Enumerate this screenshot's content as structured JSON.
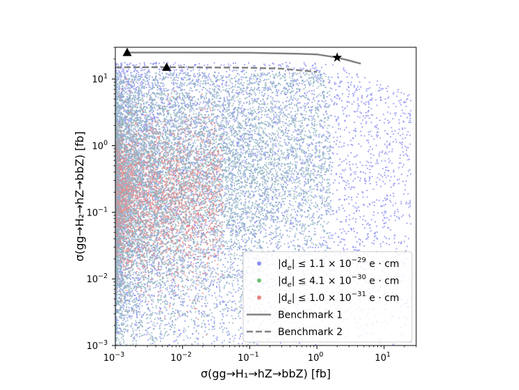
{
  "chart_data": {
    "type": "scatter",
    "title": "",
    "xlabel": "σ(gg→H₁→hZ→bbZ) [fb]",
    "ylabel": "σ(gg→H₂→hZ→bbZ) [fb]",
    "xscale": "log",
    "yscale": "log",
    "xlim": [
      0.001,
      30
    ],
    "ylim": [
      0.001,
      30
    ],
    "grid": false,
    "legend_position": "lower-right",
    "x_ticks": [
      {
        "value": 0.001,
        "base": "10",
        "exp": "−3"
      },
      {
        "value": 0.01,
        "base": "10",
        "exp": "−2"
      },
      {
        "value": 0.1,
        "base": "10",
        "exp": "−1"
      },
      {
        "value": 1,
        "base": "10",
        "exp": "0"
      },
      {
        "value": 10,
        "base": "10",
        "exp": "1"
      }
    ],
    "y_ticks": [
      {
        "value": 0.001,
        "base": "10",
        "exp": "−3"
      },
      {
        "value": 0.01,
        "base": "10",
        "exp": "−2"
      },
      {
        "value": 0.1,
        "base": "10",
        "exp": "−1"
      },
      {
        "value": 1,
        "base": "10",
        "exp": "0"
      },
      {
        "value": 10,
        "base": "10",
        "exp": "1"
      }
    ],
    "series": [
      {
        "name": "|d_e| ≤ 1.1 × 10⁻²⁹ e·cm",
        "color": "#8a8ef0",
        "kind": "scatter-cloud",
        "x_log10_range": [
          -3,
          1.4
        ],
        "y_log10_range": [
          -3,
          1.3
        ]
      },
      {
        "name": "|d_e| ≤ 4.1 × 10⁻³⁰ e·cm",
        "color": "#8fbf8f",
        "kind": "scatter-cloud",
        "x_log10_range": [
          -3,
          0.3
        ],
        "y_log10_range": [
          -3,
          1.2
        ]
      },
      {
        "name": "|d_e| ≤ 1.0 × 10⁻³¹ e·cm",
        "color": "#e88a8a",
        "kind": "scatter-cloud",
        "x_log10_range": [
          -3,
          -1.2
        ],
        "y_log10_range": [
          -3,
          1.0
        ]
      },
      {
        "name": "Benchmark 1",
        "color": "#808080",
        "kind": "line",
        "dash": "solid",
        "points": [
          [
            0.0015,
            25
          ],
          [
            0.01,
            25
          ],
          [
            0.1,
            24.8
          ],
          [
            0.5,
            24
          ],
          [
            1.0,
            23.5
          ],
          [
            2.0,
            21
          ],
          [
            3.0,
            19
          ],
          [
            4.5,
            17
          ]
        ]
      },
      {
        "name": "Benchmark 2",
        "color": "#808080",
        "kind": "line",
        "dash": "dashed",
        "points": [
          [
            0.001,
            15
          ],
          [
            0.01,
            15
          ],
          [
            0.1,
            14.8
          ],
          [
            0.3,
            14.3
          ],
          [
            0.6,
            13.4
          ],
          [
            1.0,
            12.8
          ]
        ]
      }
    ],
    "markers": [
      {
        "shape": "triangle",
        "x": 0.0015,
        "y": 25
      },
      {
        "shape": "triangle",
        "x": 0.0058,
        "y": 15
      },
      {
        "shape": "star",
        "x": 2.0,
        "y": 21
      }
    ],
    "legend": {
      "entries": [
        {
          "prefix": "|d",
          "sub": "e",
          "mid": "| ≤ 1.1 × 10",
          "sup": "−29",
          "suffix": " e · cm",
          "color": "#8a8ef0",
          "symbol": "dot"
        },
        {
          "prefix": "|d",
          "sub": "e",
          "mid": "| ≤ 4.1 × 10",
          "sup": "−30",
          "suffix": " e · cm",
          "color": "#6fbf6f",
          "symbol": "dot"
        },
        {
          "prefix": "|d",
          "sub": "e",
          "mid": "| ≤ 1.0 × 10",
          "sup": "−31",
          "suffix": " e · cm",
          "color": "#e88080",
          "symbol": "dot"
        },
        {
          "label": "Benchmark 1",
          "color": "#808080",
          "symbol": "solid-line"
        },
        {
          "label": "Benchmark 2",
          "color": "#808080",
          "symbol": "dashed-line"
        }
      ]
    }
  }
}
